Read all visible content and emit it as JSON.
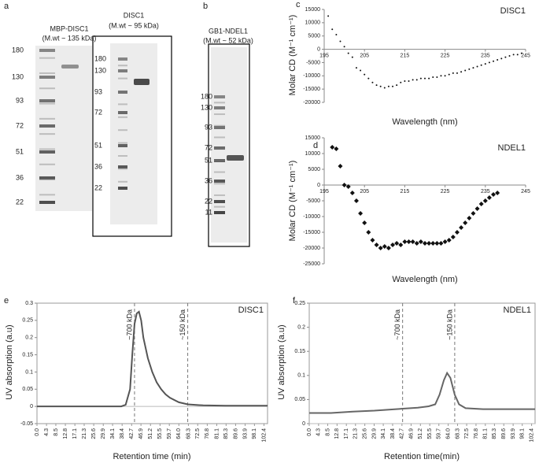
{
  "gels": [
    {
      "panel": "a",
      "title": "MBP-DISC1",
      "subtitle": "(M.wt ~ 135 kDa)",
      "markers": [
        "180",
        "130",
        "93",
        "72",
        "51",
        "36",
        "22"
      ]
    },
    {
      "title": "DISC1",
      "subtitle": "(M.wt ~ 95 kDa)",
      "markers": [
        "180",
        "130",
        "93",
        "72",
        "51",
        "36",
        "22"
      ]
    },
    {
      "panel": "b",
      "title": "GB1-NDEL1",
      "subtitle": "(M.wt ~ 52 kDa)",
      "markers": [
        "180",
        "130",
        "93",
        "72",
        "51",
        "36",
        "22",
        "11"
      ]
    }
  ],
  "chart_data": [
    {
      "type": "scatter",
      "panel": "c",
      "annotation": "DISC1",
      "xlabel": "Wavelength (nm)",
      "ylabel": "Molar CD (M⁻¹ cm⁻¹)",
      "marker": "dot",
      "color": "#111",
      "x": [
        196,
        197,
        198,
        199,
        200,
        201,
        202,
        203,
        204,
        205,
        206,
        207,
        208,
        209,
        210,
        211,
        212,
        213,
        214,
        215,
        216,
        217,
        218,
        219,
        220,
        221,
        222,
        223,
        224,
        225,
        226,
        227,
        228,
        229,
        230,
        231,
        232,
        233,
        234,
        235,
        236,
        237,
        238,
        239,
        240,
        241,
        242,
        243,
        244
      ],
      "values": [
        12500,
        7500,
        5500,
        3000,
        1000,
        -1500,
        -3000,
        -7000,
        -8000,
        -9500,
        -11000,
        -12500,
        -13500,
        -14000,
        -14500,
        -14000,
        -14000,
        -13500,
        -12500,
        -12000,
        -12000,
        -11500,
        -11500,
        -11000,
        -11000,
        -11000,
        -10500,
        -10500,
        -10000,
        -10000,
        -9500,
        -9000,
        -9000,
        -8500,
        -8000,
        -7500,
        -7000,
        -6500,
        -6000,
        -5500,
        -5000,
        -4500,
        -4000,
        -3500,
        -3000,
        -2500,
        -2000,
        -2000,
        -1500
      ],
      "xlim": [
        195,
        245
      ],
      "xticks": [
        195,
        205,
        215,
        225,
        235,
        245
      ],
      "ylim": [
        -20000,
        15000
      ],
      "yticks": [
        15000,
        10000,
        5000,
        0,
        -5000,
        -10000,
        -15000,
        -20000
      ]
    },
    {
      "type": "scatter",
      "panel": "d",
      "annotation": "NDEL1",
      "xlabel": "Wavelength (nm)",
      "ylabel": "Molar CD (M⁻¹ cm⁻¹)",
      "marker": "diamond",
      "color": "#111",
      "x": [
        197,
        198,
        199,
        200,
        201,
        202,
        203,
        204,
        205,
        206,
        207,
        208,
        209,
        210,
        211,
        212,
        213,
        214,
        215,
        216,
        217,
        218,
        219,
        220,
        221,
        222,
        223,
        224,
        225,
        226,
        227,
        228,
        229,
        230,
        231,
        232,
        233,
        234,
        235,
        236,
        237,
        238
      ],
      "values": [
        12000,
        11500,
        6000,
        0,
        -500,
        -2500,
        -5000,
        -9000,
        -12000,
        -15000,
        -17500,
        -19000,
        -20000,
        -19500,
        -20000,
        -19000,
        -18500,
        -19000,
        -18000,
        -18000,
        -18000,
        -18500,
        -18000,
        -18500,
        -18500,
        -18500,
        -18500,
        -18500,
        -18000,
        -17500,
        -16500,
        -15000,
        -13500,
        -12000,
        -10500,
        -9000,
        -7500,
        -6000,
        -5000,
        -4000,
        -3000,
        -2500
      ],
      "xlim": [
        195,
        245
      ],
      "xticks": [
        195,
        205,
        215,
        225,
        235,
        245
      ],
      "ylim": [
        -25000,
        15000
      ],
      "yticks": [
        15000,
        10000,
        5000,
        0,
        -5000,
        -10000,
        -15000,
        -20000,
        -25000
      ]
    },
    {
      "type": "line",
      "panel": "e",
      "annotation": "DISC1",
      "xlabel": "Retention time (min)",
      "ylabel": "UV absorption (a.u)",
      "color": "#555",
      "x": [
        0,
        10,
        20,
        30,
        38,
        40,
        42,
        43,
        44,
        45,
        46,
        47,
        48,
        50,
        52,
        54,
        56,
        58,
        60,
        64,
        68,
        75,
        85,
        104
      ],
      "values": [
        0,
        0,
        0,
        0,
        0,
        0.005,
        0.05,
        0.15,
        0.24,
        0.27,
        0.275,
        0.25,
        0.2,
        0.14,
        0.1,
        0.07,
        0.05,
        0.035,
        0.025,
        0.012,
        0.006,
        0.003,
        0.002,
        0.002
      ],
      "markers": [
        {
          "x": 44,
          "label": "~700 kDa"
        },
        {
          "x": 68,
          "label": "~150 kDa"
        }
      ],
      "xlim": [
        0,
        104
      ],
      "xticks": [
        {
          "value": 0,
          "label": "0.0"
        },
        4.3,
        8.5,
        12.8,
        17.1,
        21.3,
        25.6,
        29.9,
        34.1,
        38.4,
        42.7,
        46.9,
        51.2,
        55.5,
        59.7,
        {
          "value": 64,
          "label": "64.0"
        },
        68.3,
        72.5,
        76.8,
        81.1,
        85.3,
        89.6,
        93.9,
        98.1,
        102.4
      ],
      "ylim": [
        -0.05,
        0.3
      ],
      "yticks": [
        0.3,
        0.25,
        0.2,
        0.15,
        0.1,
        0.05,
        0,
        -0.05
      ]
    },
    {
      "type": "line",
      "panel": "f",
      "annotation": "NDEL1",
      "xlabel": "Retention time(min)",
      "ylabel": "UV absorption (a.u)",
      "color": "#666",
      "x": [
        0,
        10,
        20,
        30,
        40,
        50,
        55,
        58,
        60,
        62,
        63.5,
        65,
        67,
        69,
        72,
        80,
        104
      ],
      "values": [
        0.022,
        0.022,
        0.025,
        0.027,
        0.03,
        0.033,
        0.036,
        0.04,
        0.06,
        0.09,
        0.105,
        0.095,
        0.06,
        0.04,
        0.032,
        0.03,
        0.03
      ],
      "markers": [
        {
          "x": 43,
          "label": "~700 kDa"
        },
        {
          "x": 67,
          "label": "~150 kDa"
        }
      ],
      "xlim": [
        0,
        104
      ],
      "xticks": [
        {
          "value": 0,
          "label": "0.0"
        },
        4.3,
        8.5,
        12.8,
        17.1,
        21.3,
        25.6,
        29.9,
        34.1,
        38.4,
        42.7,
        46.9,
        51.2,
        55.5,
        59.7,
        {
          "value": 64,
          "label": "64.0"
        },
        68.3,
        72.5,
        76.8,
        81.1,
        85.3,
        89.6,
        93.9,
        98.1,
        102.4
      ],
      "ylim": [
        0,
        0.25
      ],
      "yticks": [
        0.25,
        0.2,
        0.15,
        0.1,
        0.05,
        0
      ]
    }
  ]
}
